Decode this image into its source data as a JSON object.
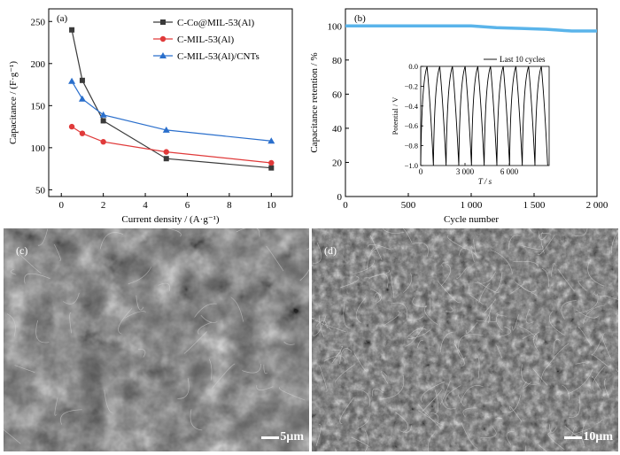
{
  "chart_data": [
    {
      "panel_label": "(a)",
      "type": "line",
      "xlabel": "Current density / (A·g⁻¹)",
      "ylabel": "Capacitance / (F·g⁻¹)",
      "xlim": [
        -0.6,
        11
      ],
      "ylim": [
        42,
        265
      ],
      "xticks": [
        0,
        2,
        4,
        6,
        8,
        10
      ],
      "yticks": [
        50,
        100,
        150,
        200,
        250
      ],
      "legend_position": "top-right",
      "series": [
        {
          "name": "C-Co@MIL-53(Al)",
          "color": "#3a3a3a",
          "marker": "square",
          "x": [
            0.5,
            1,
            2,
            5,
            10
          ],
          "y": [
            240,
            180,
            132,
            87,
            76
          ]
        },
        {
          "name": "C-MIL-53(Al)",
          "color": "#e03a3a",
          "marker": "circle",
          "x": [
            0.5,
            1,
            2,
            5,
            10
          ],
          "y": [
            125,
            117,
            107,
            95,
            82
          ]
        },
        {
          "name": "C-MIL-53(Al)/CNTs",
          "color": "#2a6fcc",
          "marker": "triangle",
          "x": [
            0.5,
            1,
            2,
            5,
            10
          ],
          "y": [
            179,
            158,
            139,
            121,
            108
          ]
        }
      ]
    },
    {
      "panel_label": "(b)",
      "type": "line",
      "xlabel": "Cycle number",
      "ylabel": "Capacitance retention / %",
      "xlim": [
        0,
        2000
      ],
      "ylim": [
        0,
        110
      ],
      "xticks": [
        0,
        500,
        1000,
        1500,
        2000
      ],
      "xtick_labels": [
        "0",
        "500",
        "1 000",
        "1 500",
        "2 000"
      ],
      "yticks": [
        0,
        20,
        40,
        60,
        80,
        100
      ],
      "series": [
        {
          "color": "#5ab4ea",
          "x": [
            0,
            200,
            400,
            600,
            800,
            1000,
            1100,
            1200,
            1400,
            1600,
            1800,
            2000
          ],
          "y": [
            100,
            100,
            100,
            100,
            100,
            100,
            99.5,
            99,
            98.5,
            98,
            97,
            97
          ]
        }
      ],
      "inset": {
        "type": "line",
        "xlabel": "T / s",
        "ylabel": "Potential / V",
        "xlim": [
          0,
          8700
        ],
        "ylim": [
          -1.0,
          0.0
        ],
        "xticks": [
          0,
          3000,
          6000
        ],
        "xtick_labels": [
          "0",
          "3 000",
          "6 000"
        ],
        "yticks": [
          -1.0,
          -0.8,
          -0.6,
          -0.4,
          -0.2,
          0.0
        ],
        "ytick_labels": [
          "−1.0",
          "−0.8",
          "−0.6",
          "−0.4",
          "−0.2",
          "0.0"
        ],
        "legend": "Last 10 cycles",
        "cycles": 10,
        "cycle_period_s": 860
      }
    }
  ],
  "images": [
    {
      "label": "(c)",
      "scale_bar": "5μm"
    },
    {
      "label": "(d)",
      "scale_bar": "10μm"
    }
  ]
}
